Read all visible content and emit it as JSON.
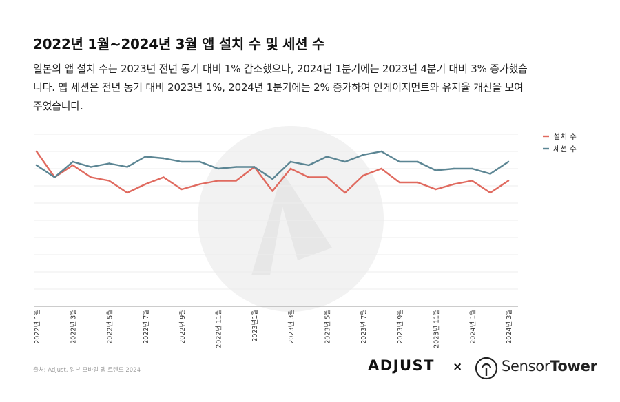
{
  "title": "2022년 1월~2024년 3월 앱 설치 수 및 세션 수",
  "subtitle": "일본의 앱 설치 수는 2023년 전년 동기 대비 1% 감소했으나, 2024년 1분기에는 2023년 4분기 대비 3% 증가했습니다. 앱 세션은 전년 동기 대비 2023년 1%, 2024년 1분기에는 2% 증가하여 인게이지먼트와 유지율 개선을 보여주었습니다.",
  "source": "출처: Adjust, 일본 모바일 앱 트렌드 2024",
  "logos": {
    "adjust": "ADJUST",
    "times": "×",
    "sensor": "Sensor",
    "tower": "Tower"
  },
  "chart_data": {
    "type": "line",
    "title": "2022년 1월~2024년 3월 앱 설치 수 및 세션 수",
    "xlabel": "",
    "ylabel": "",
    "ylim": [
      0,
      100
    ],
    "grid": true,
    "legend": "top-right",
    "x": [
      "2022-01",
      "2022-02",
      "2022-03",
      "2022-04",
      "2022-05",
      "2022-06",
      "2022-07",
      "2022-08",
      "2022-09",
      "2022-10",
      "2022-11",
      "2022-12",
      "2023-01",
      "2023-02",
      "2023-03",
      "2023-04",
      "2023-05",
      "2023-06",
      "2023-07",
      "2023-08",
      "2023-09",
      "2023-10",
      "2023-11",
      "2023-12",
      "2024-01",
      "2024-02",
      "2024-03"
    ],
    "tick_labels": [
      "2022년 1월",
      "2022년 3월",
      "2022년 5월",
      "2022년 7월",
      "2022년 9월",
      "2022년 11월",
      "2023년1월",
      "2023년 3월",
      "2023년 5월",
      "2023년 7월",
      "2023년 9월",
      "2023년 11월",
      "2024년 1월",
      "2024년 3월"
    ],
    "series": [
      {
        "name": "설치 수",
        "color": "#e06a5f",
        "values": [
          90,
          75,
          82,
          75,
          73,
          66,
          71,
          75,
          68,
          71,
          73,
          73,
          81,
          67,
          80,
          75,
          75,
          66,
          76,
          80,
          72,
          72,
          68,
          71,
          73,
          66,
          73
        ]
      },
      {
        "name": "세션 수",
        "color": "#5b8593",
        "values": [
          82,
          75,
          84,
          81,
          83,
          81,
          87,
          86,
          84,
          84,
          80,
          81,
          81,
          74,
          84,
          82,
          87,
          84,
          88,
          90,
          84,
          84,
          79,
          80,
          80,
          77,
          84
        ]
      }
    ]
  }
}
